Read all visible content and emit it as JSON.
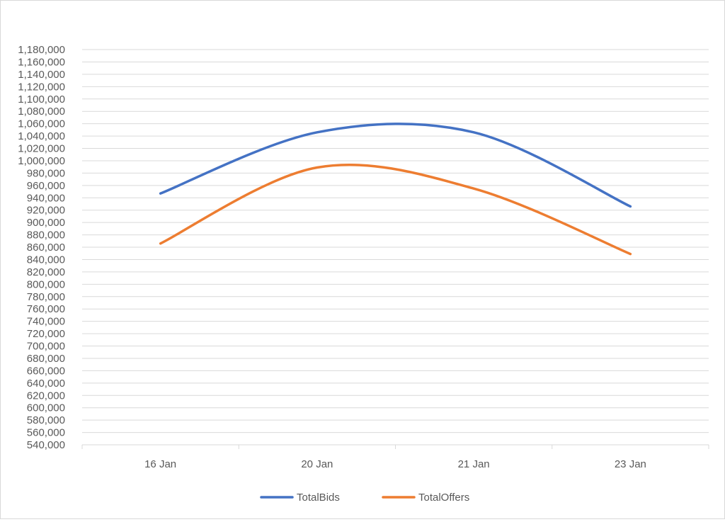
{
  "chart_data": {
    "type": "line",
    "title": "",
    "xlabel": "",
    "ylabel": "",
    "categories": [
      "16 Jan",
      "20 Jan",
      "21 Jan",
      "23 Jan"
    ],
    "ylim": [
      540000,
      1180000
    ],
    "ytick_step": 20000,
    "yticks": [
      540000,
      560000,
      580000,
      600000,
      620000,
      640000,
      660000,
      680000,
      700000,
      720000,
      740000,
      760000,
      780000,
      800000,
      820000,
      840000,
      860000,
      880000,
      900000,
      920000,
      940000,
      960000,
      980000,
      1000000,
      1020000,
      1040000,
      1060000,
      1080000,
      1100000,
      1120000,
      1140000,
      1160000,
      1180000
    ],
    "ytick_labels": [
      "540,000",
      "560,000",
      "580,000",
      "600,000",
      "620,000",
      "640,000",
      "660,000",
      "680,000",
      "700,000",
      "720,000",
      "740,000",
      "760,000",
      "780,000",
      "800,000",
      "820,000",
      "840,000",
      "860,000",
      "880,000",
      "900,000",
      "920,000",
      "940,000",
      "960,000",
      "980,000",
      "1,000,000",
      "1,020,000",
      "1,040,000",
      "1,060,000",
      "1,080,000",
      "1,100,000",
      "1,120,000",
      "1,140,000",
      "1,160,000",
      "1,180,000"
    ],
    "grid": true,
    "smooth": true,
    "legend": "bottom",
    "series": [
      {
        "name": "TotalBids",
        "color": "#4472c4",
        "values": [
          947000,
          1046000,
          1046000,
          926000
        ]
      },
      {
        "name": "TotalOffers",
        "color": "#ed7d31",
        "values": [
          866000,
          989000,
          955000,
          849000
        ]
      }
    ]
  }
}
